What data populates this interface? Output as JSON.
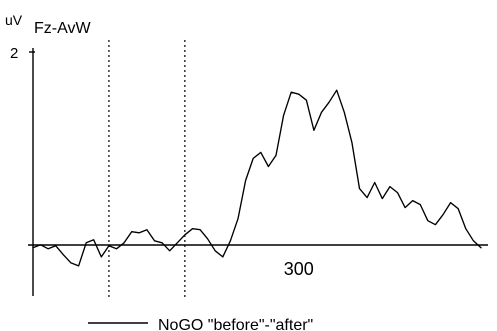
{
  "chart_data": {
    "type": "line",
    "title": "",
    "channel": "Fz-AvW",
    "ylabel": "uV",
    "xlabel": "",
    "xlim": [
      -50,
      540
    ],
    "ylim": [
      -0.4,
      2
    ],
    "yticks": [
      {
        "value": 2,
        "label": "2"
      }
    ],
    "xticks": [
      {
        "value": 300,
        "label": "300"
      }
    ],
    "vlines": [
      50,
      150
    ],
    "legend": {
      "placement": "bottom-center",
      "entries": [
        "NoGO \"before\"-\"after\""
      ]
    },
    "series": [
      {
        "name": "NoGO \"before\"-\"after\"",
        "x": [
          -50,
          -40,
          -30,
          -20,
          -10,
          0,
          10,
          20,
          30,
          40,
          50,
          60,
          70,
          80,
          90,
          100,
          110,
          120,
          130,
          140,
          150,
          160,
          170,
          180,
          190,
          200,
          210,
          220,
          230,
          240,
          250,
          260,
          270,
          280,
          290,
          300,
          310,
          320,
          330,
          340,
          350,
          360,
          370,
          380,
          390,
          400,
          410,
          420,
          430,
          440,
          450,
          460,
          470,
          480,
          490,
          500,
          510,
          520,
          530,
          540
        ],
        "values": [
          0.05,
          0.08,
          0.04,
          0.07,
          -0.02,
          -0.1,
          -0.13,
          0.1,
          0.13,
          -0.04,
          0.07,
          0.04,
          0.1,
          0.21,
          0.2,
          0.23,
          0.12,
          0.1,
          0.02,
          0.1,
          0.18,
          0.24,
          0.23,
          0.14,
          0.02,
          -0.04,
          0.12,
          0.34,
          0.72,
          0.94,
          1.0,
          0.86,
          0.97,
          1.37,
          1.6,
          1.58,
          1.52,
          1.22,
          1.4,
          1.5,
          1.62,
          1.4,
          1.1,
          0.64,
          0.55,
          0.7,
          0.54,
          0.66,
          0.6,
          0.45,
          0.52,
          0.48,
          0.32,
          0.28,
          0.38,
          0.5,
          0.44,
          0.24,
          0.12,
          0.05
        ]
      }
    ]
  }
}
